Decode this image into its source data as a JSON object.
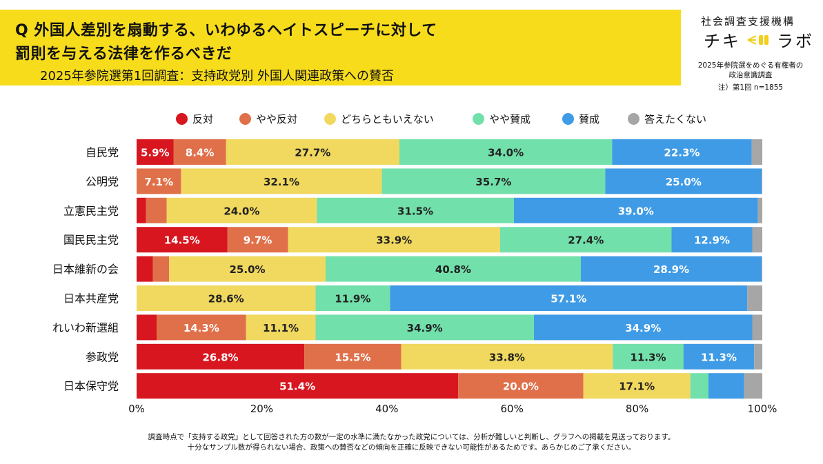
{
  "header": {
    "question_line1": "Q 外国人差別を扇動する、いわゆるヘイトスピーチに対して",
    "question_line2": "罰則を与える法律を作るべきだ",
    "subtitle": "2025年参院選第1回調査：支持政党別 外国人関連政策への賛否"
  },
  "brand": {
    "org": "社会調査支援機構",
    "logo_left": "チキ",
    "logo_right": "ラボ",
    "note_line1": "2025年参院選をめぐる有権者の",
    "note_line2": "政治意識調査",
    "note_line3": "注）第1回 n=1855"
  },
  "footnote": {
    "line1": "調査時点で「支持する政党」として回答された方の数が一定の水準に満たなかった政党については、分析が難しいと判断し、グラフへの掲載を見送っております。",
    "line2": "十分なサンプル数が得られない場合、政策への賛否などの傾向を正確に反映できない可能性があるためです。あらかじめご了承ください。"
  },
  "chart_data": {
    "type": "bar",
    "orientation": "horizontal",
    "stacked": true,
    "categories": [
      "自民党",
      "公明党",
      "立憲民主党",
      "国民民主党",
      "日本維新の会",
      "日本共産党",
      "れいわ新選組",
      "参政党",
      "日本保守党"
    ],
    "series": [
      {
        "name": "反対",
        "color": "#d7161f",
        "values": [
          5.9,
          0,
          1.5,
          14.5,
          2.6,
          0,
          3.2,
          26.8,
          51.4
        ],
        "labels": [
          "5.9%",
          "",
          "",
          "14.5%",
          "",
          "",
          "",
          "26.8%",
          "51.4%"
        ]
      },
      {
        "name": "やや反対",
        "color": "#e0704a",
        "values": [
          8.4,
          7.1,
          3.3,
          9.7,
          2.6,
          0,
          14.3,
          15.5,
          20.0
        ],
        "labels": [
          "8.4%",
          "7.1%",
          "",
          "9.7%",
          "",
          "",
          "14.3%",
          "15.5%",
          "20.0%"
        ]
      },
      {
        "name": "どちらともいえない",
        "color": "#f1d85e",
        "values": [
          27.7,
          32.1,
          24.0,
          33.9,
          25.0,
          28.6,
          11.1,
          33.8,
          17.1
        ],
        "labels": [
          "27.7%",
          "32.1%",
          "24.0%",
          "33.9%",
          "25.0%",
          "28.6%",
          "11.1%",
          "33.8%",
          "17.1%"
        ]
      },
      {
        "name": "やや賛成",
        "color": "#72e0ab",
        "values": [
          34.0,
          35.7,
          31.5,
          27.4,
          40.8,
          11.9,
          34.9,
          11.3,
          2.9
        ],
        "labels": [
          "34.0%",
          "35.7%",
          "31.5%",
          "27.4%",
          "40.8%",
          "11.9%",
          "34.9%",
          "11.3%",
          ""
        ]
      },
      {
        "name": "賛成",
        "color": "#3f9be6",
        "values": [
          22.3,
          25.0,
          39.0,
          12.9,
          28.9,
          57.1,
          34.9,
          11.3,
          5.7
        ],
        "labels": [
          "22.3%",
          "25.0%",
          "39.0%",
          "12.9%",
          "28.9%",
          "57.1%",
          "34.9%",
          "11.3%",
          ""
        ]
      },
      {
        "name": "答えたくない",
        "color": "#a6a6a6",
        "values": [
          1.7,
          0.1,
          0.7,
          1.6,
          0.1,
          2.4,
          1.6,
          1.3,
          2.9
        ],
        "labels": [
          "",
          "",
          "",
          "",
          "",
          "",
          "",
          "",
          ""
        ]
      }
    ],
    "label_colors": [
      "#ffffff",
      "#ffffff",
      "#222222",
      "#222222",
      "#ffffff",
      "#ffffff"
    ],
    "xlim": [
      0,
      100
    ],
    "xticks": [
      "0%",
      "20%",
      "40%",
      "60%",
      "80%",
      "100%"
    ],
    "legend_position": "top"
  }
}
